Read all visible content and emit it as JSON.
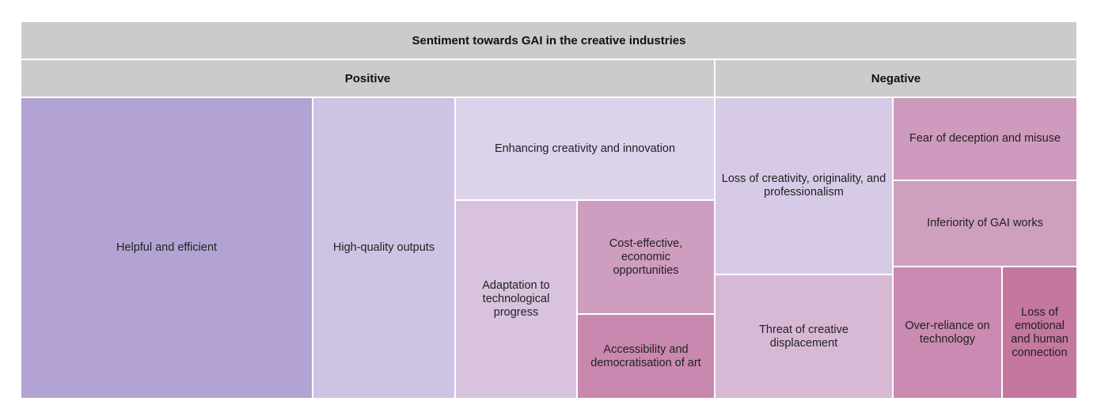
{
  "chart_data": {
    "type": "treemap",
    "title": "Sentiment towards GAI in the creative industries",
    "groups": [
      {
        "name": "Positive",
        "children": [
          {
            "label": "Helpful and efficient",
            "value": 100,
            "color": "#b3a3d4"
          },
          {
            "label": "High-quality outputs",
            "value": 49,
            "color": "#cfc3e3"
          },
          {
            "label": "Enhancing creativity and innovation",
            "value": 42,
            "color": "#dcd2ea"
          },
          {
            "label": "Adaptation to technological progress",
            "value": 33,
            "color": "#d8c2dd"
          },
          {
            "label": "Cost-effective, economic opportunities",
            "value": 28,
            "color": "#cf9dbf"
          },
          {
            "label": "Accessibility and democratisation of art",
            "value": 22,
            "color": "#c988b0"
          }
        ]
      },
      {
        "name": "Negative",
        "children": [
          {
            "label": "Loss of creativity, originality, and professionalism",
            "value": 50,
            "color": "#d6cae6"
          },
          {
            "label": "Threat of creative displacement",
            "value": 35,
            "color": "#d7b9d6"
          },
          {
            "label": "Fear of deception and misuse",
            "value": 22,
            "color": "#ce9abd"
          },
          {
            "label": "Inferiority of GAI works",
            "value": 23,
            "color": "#cf9fc0"
          },
          {
            "label": "Over-reliance on technology",
            "value": 30,
            "color": "#ca8ab2"
          },
          {
            "label": "Loss of emotional and human connection",
            "value": 20,
            "color": "#c4779f"
          }
        ]
      }
    ]
  }
}
